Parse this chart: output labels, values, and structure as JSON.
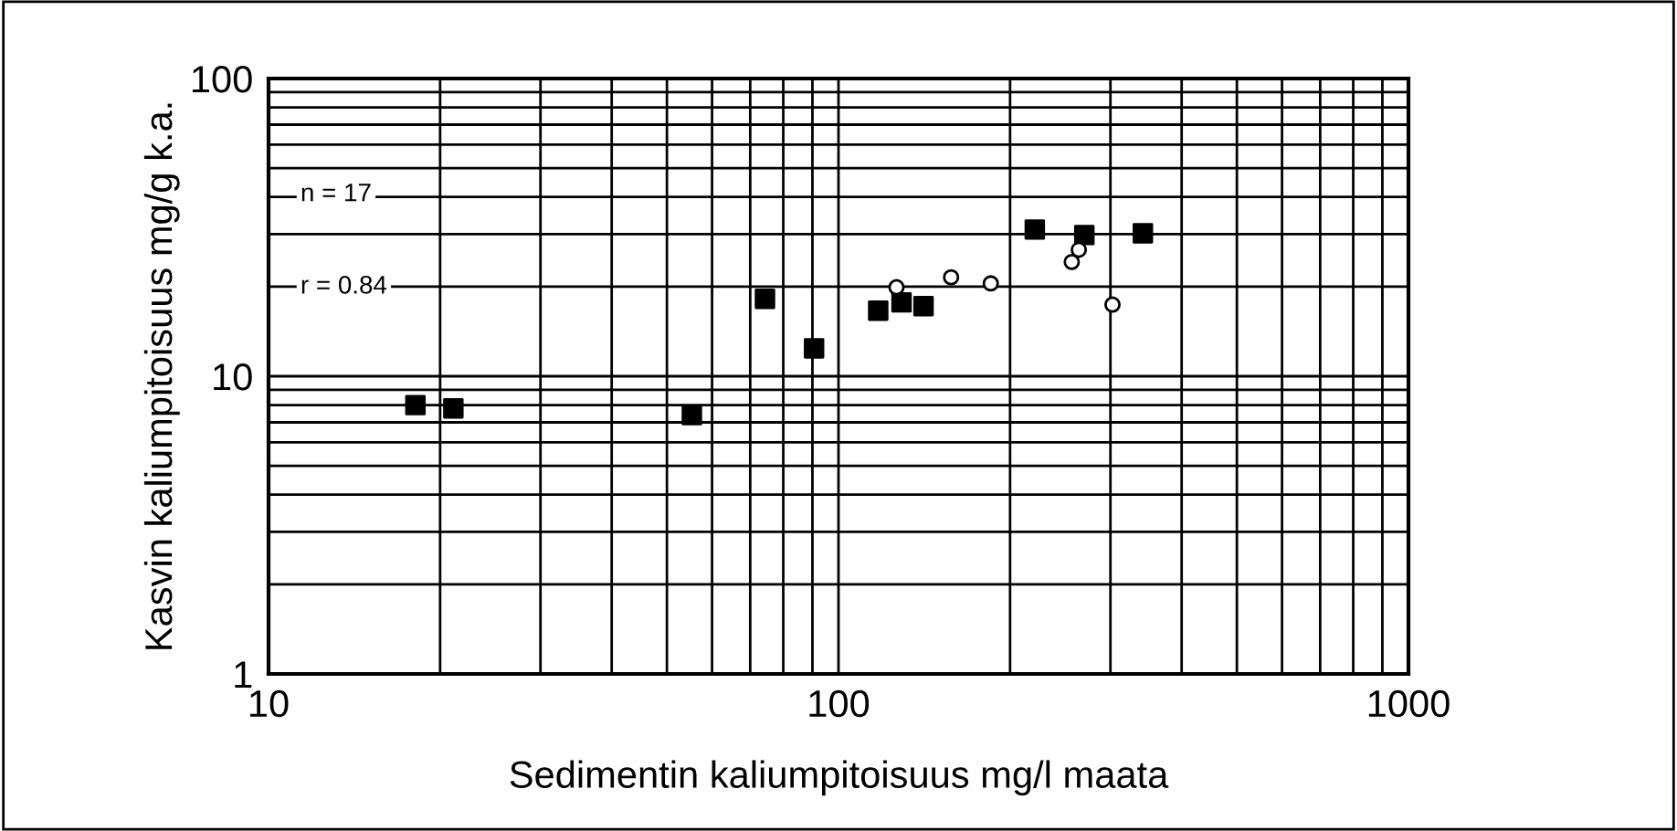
{
  "chart_data": {
    "type": "scatter",
    "xlabel": "Sedimentin kaliumpitoisuus mg/l maata",
    "ylabel": "Kasvin kaliumpitoisuus mg/g k.a.",
    "annotations": [
      "n = 17",
      "r = 0.84"
    ],
    "log": "xy",
    "grid": true,
    "legend": false,
    "xlim": [
      10,
      1000
    ],
    "xticks": [
      10,
      100,
      1000
    ],
    "ylim": [
      1,
      100
    ],
    "yticks": [
      1,
      10,
      100
    ],
    "series": [
      {
        "color": "#000000",
        "marker": "square",
        "x": [
          18.1,
          21.1,
          55.3,
          74.3,
          90.6,
          117.4,
          129,
          141,
          221,
          270,
          342
        ],
        "values": [
          8.0,
          7.8,
          7.4,
          18.2,
          12.4,
          16.6,
          17.7,
          17.2,
          31.1,
          29.8,
          30.2
        ]
      },
      {
        "color": "#000000",
        "marker": "circle",
        "x": [
          126.4,
          157.6,
          185,
          256.6,
          264,
          302.5
        ],
        "values": [
          19.9,
          21.5,
          20.5,
          24.2,
          26.6,
          17.4
        ]
      }
    ]
  }
}
